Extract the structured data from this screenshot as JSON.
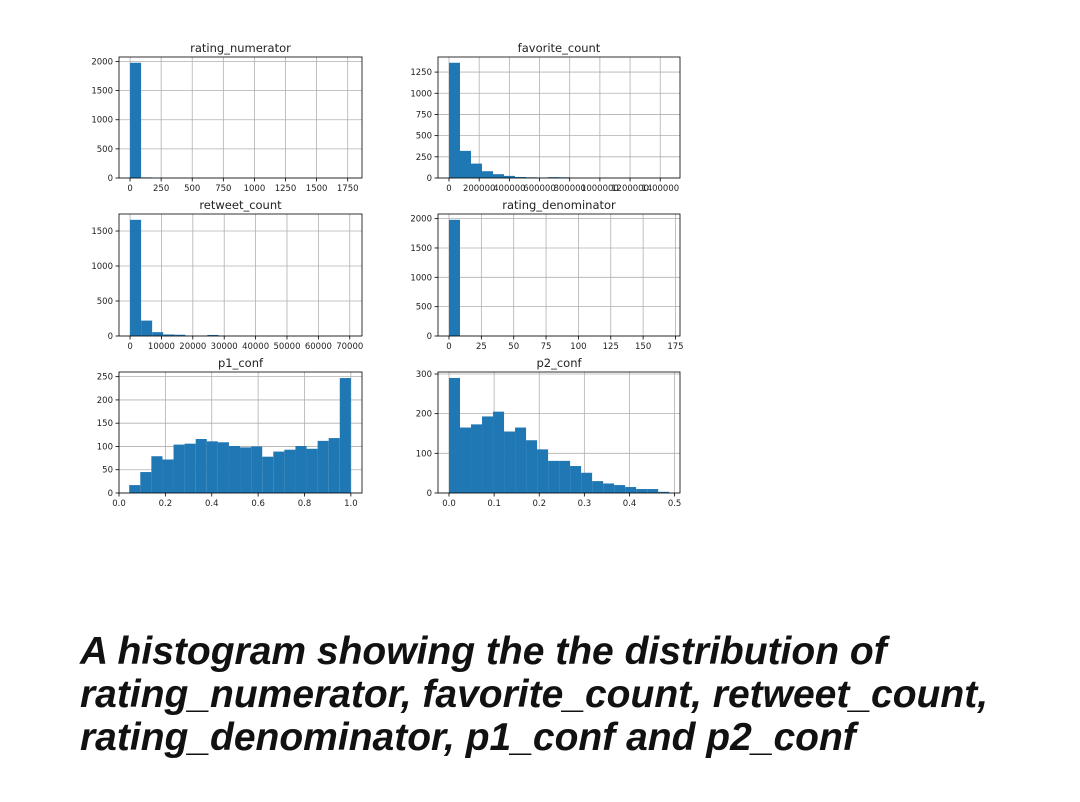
{
  "colors": {
    "bar": "#1f77b4",
    "grid": "#b0b0b0",
    "axis": "#000000",
    "text": "#222222"
  },
  "chart_data": [
    {
      "type": "bar",
      "title": "rating_numerator",
      "bin_start": 0,
      "bin_width": 88.8,
      "values": [
        1978,
        10,
        0,
        0,
        0,
        0,
        0,
        0,
        0,
        0,
        0,
        0,
        0,
        0,
        0,
        0,
        0,
        0,
        0,
        1
      ],
      "xlim": [
        -88.8,
        1865
      ],
      "ylim": [
        0,
        2077
      ],
      "xticks": [
        0,
        250,
        500,
        750,
        1000,
        1250,
        1500,
        1750
      ],
      "xtick_labels": [
        "0",
        "250",
        "500",
        "750",
        "1000",
        "1250",
        "1500",
        "1750"
      ],
      "yticks": [
        0,
        500,
        1000,
        1500,
        2000
      ],
      "ytick_labels": [
        "0",
        "500",
        "1000",
        "1500",
        "2000"
      ],
      "grid": true
    },
    {
      "type": "bar",
      "title": "favorite_count",
      "bin_start": 0,
      "bin_width": 72900,
      "values": [
        1360,
        320,
        170,
        80,
        45,
        25,
        12,
        8,
        5,
        10,
        8,
        2,
        1,
        1,
        1,
        0,
        0,
        0,
        0,
        1
      ],
      "xlim": [
        -72900,
        1531000
      ],
      "ylim": [
        0,
        1428
      ],
      "xticks": [
        0,
        200000,
        400000,
        600000,
        800000,
        1000000,
        1200000,
        1400000
      ],
      "xtick_labels": [
        "0",
        "200000",
        "400000",
        "600000",
        "800000",
        "1000000",
        "1200000",
        "1400000"
      ],
      "yticks": [
        0,
        250,
        500,
        750,
        1000,
        1250
      ],
      "ytick_labels": [
        "0",
        "250",
        "500",
        "750",
        "1000",
        "1250"
      ],
      "grid": true
    },
    {
      "type": "bar",
      "title": "retweet_count",
      "bin_start": 0,
      "bin_width": 3520,
      "values": [
        1660,
        220,
        55,
        22,
        18,
        5,
        3,
        15,
        3,
        2,
        1,
        1,
        1,
        0,
        0,
        0,
        0,
        0,
        0,
        1
      ],
      "xlim": [
        -3520,
        73900
      ],
      "ylim": [
        0,
        1743
      ],
      "xticks": [
        0,
        10000,
        20000,
        30000,
        40000,
        50000,
        60000,
        70000
      ],
      "xtick_labels": [
        "0",
        "10000",
        "20000",
        "30000",
        "40000",
        "50000",
        "60000",
        "70000"
      ],
      "yticks": [
        0,
        500,
        1000,
        1500
      ],
      "ytick_labels": [
        "0",
        "500",
        "1000",
        "1500"
      ],
      "grid": true
    },
    {
      "type": "bar",
      "title": "rating_denominator",
      "bin_start": 0,
      "bin_width": 8.5,
      "values": [
        1980,
        3,
        1,
        1,
        1,
        1,
        0,
        1,
        1,
        0,
        0,
        0,
        0,
        0,
        0,
        0,
        0,
        0,
        0,
        1
      ],
      "xlim": [
        -8.5,
        178.5
      ],
      "ylim": [
        0,
        2079
      ],
      "xticks": [
        0,
        25,
        50,
        75,
        100,
        125,
        150,
        175
      ],
      "xtick_labels": [
        "0",
        "25",
        "50",
        "75",
        "100",
        "125",
        "150",
        "175"
      ],
      "yticks": [
        0,
        500,
        1000,
        1500,
        2000
      ],
      "ytick_labels": [
        "0",
        "500",
        "1000",
        "1500",
        "2000"
      ],
      "grid": true
    },
    {
      "type": "bar",
      "title": "p1_conf",
      "bin_start": 0.044,
      "bin_width": 0.0478,
      "values": [
        17,
        45,
        79,
        72,
        104,
        106,
        116,
        111,
        109,
        101,
        98,
        100,
        78,
        89,
        93,
        101,
        95,
        112,
        118,
        247
      ],
      "xlim": [
        0,
        1.048
      ],
      "ylim": [
        0,
        260
      ],
      "xticks": [
        0,
        0.2,
        0.4,
        0.6,
        0.8,
        1.0
      ],
      "xtick_labels": [
        "0.0",
        "0.2",
        "0.4",
        "0.6",
        "0.8",
        "1.0"
      ],
      "yticks": [
        0,
        50,
        100,
        150,
        200,
        250
      ],
      "ytick_labels": [
        "0",
        "50",
        "100",
        "150",
        "200",
        "250"
      ],
      "grid": true
    },
    {
      "type": "bar",
      "title": "p2_conf",
      "bin_start": 0,
      "bin_width": 0.0244,
      "values": [
        290,
        165,
        173,
        193,
        205,
        155,
        165,
        133,
        110,
        81,
        81,
        68,
        51,
        30,
        24,
        20,
        15,
        10,
        10,
        3
      ],
      "xlim": [
        -0.0244,
        0.512
      ],
      "ylim": [
        0,
        305
      ],
      "xticks": [
        0,
        0.1,
        0.2,
        0.3,
        0.4,
        0.5
      ],
      "xtick_labels": [
        "0.0",
        "0.1",
        "0.2",
        "0.3",
        "0.4",
        "0.5"
      ],
      "yticks": [
        0,
        100,
        200,
        300
      ],
      "ytick_labels": [
        "0",
        "100",
        "200",
        "300"
      ],
      "grid": true
    }
  ],
  "caption": "A histogram showing the the distribution of rating_numerator, favorite_count, retweet_count, rating_denominator, p1_conf and p2_conf"
}
